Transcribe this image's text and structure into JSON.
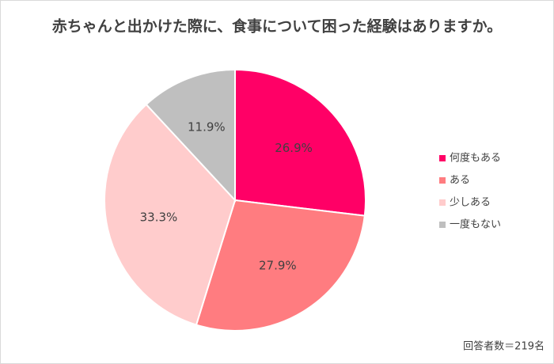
{
  "chart_data": {
    "type": "pie",
    "title": "赤ちゃんと出かけた際に、食事について困った経験はありますか。",
    "categories": [
      "何度もある",
      "ある",
      "少しある",
      "一度もない"
    ],
    "values": [
      26.9,
      27.9,
      33.3,
      11.9
    ],
    "value_labels": [
      "26.9%",
      "27.9%",
      "33.3%",
      "11.9%"
    ],
    "colors": [
      "#ff0066",
      "#ff7c80",
      "#ffcccc",
      "#bfbfbf"
    ],
    "legend": "right",
    "annotation": "回答者数＝219名"
  }
}
